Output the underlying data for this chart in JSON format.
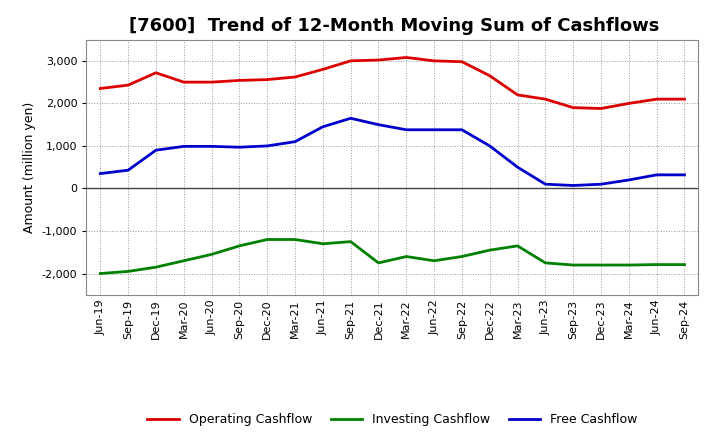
{
  "title": "[7600]  Trend of 12-Month Moving Sum of Cashflows",
  "ylabel": "Amount (million yen)",
  "xlabels": [
    "Jun-19",
    "Sep-19",
    "Dec-19",
    "Mar-20",
    "Jun-20",
    "Sep-20",
    "Dec-20",
    "Mar-21",
    "Jun-21",
    "Sep-21",
    "Dec-21",
    "Mar-22",
    "Jun-22",
    "Sep-22",
    "Dec-22",
    "Mar-23",
    "Jun-23",
    "Sep-23",
    "Dec-23",
    "Mar-24",
    "Jun-24",
    "Sep-24"
  ],
  "operating": [
    2350,
    2430,
    2720,
    2500,
    2500,
    2540,
    2560,
    2620,
    2800,
    3000,
    3020,
    3080,
    3000,
    2980,
    2650,
    2200,
    2100,
    1900,
    1880,
    2000,
    2100,
    2100
  ],
  "investing": [
    -2000,
    -1950,
    -1850,
    -1700,
    -1550,
    -1350,
    -1200,
    -1200,
    -1300,
    -1250,
    -1750,
    -1600,
    -1700,
    -1600,
    -1450,
    -1350,
    -1750,
    -1800,
    -1800,
    -1800,
    -1790,
    -1790
  ],
  "free": [
    350,
    430,
    900,
    990,
    990,
    970,
    1000,
    1100,
    1450,
    1650,
    1500,
    1380,
    1380,
    1380,
    1000,
    500,
    100,
    70,
    100,
    200,
    320,
    320
  ],
  "operating_color": "#dd0000",
  "investing_color": "#008000",
  "free_color": "#0000cc",
  "bg_color": "#ffffff",
  "plot_bg_color": "#ffffff",
  "ylim": [
    -2500,
    3500
  ],
  "yticks": [
    -2000,
    -1000,
    0,
    1000,
    2000,
    3000
  ],
  "grid_color": "#999999",
  "zero_line_color": "#444444",
  "title_fontsize": 13,
  "axis_fontsize": 9,
  "tick_fontsize": 8,
  "legend_fontsize": 9,
  "line_width": 2.0
}
